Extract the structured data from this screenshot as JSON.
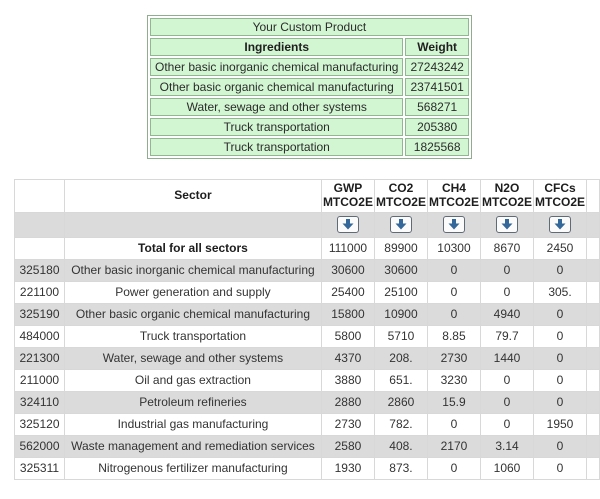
{
  "custom_product_table": {
    "title": "Your Custom Product",
    "columns": {
      "ingredients": "Ingredients",
      "weight": "Weight"
    },
    "rows": [
      {
        "ingredient": "Other basic inorganic chemical manufacturing",
        "weight": "27243242"
      },
      {
        "ingredient": "Other basic organic chemical manufacturing",
        "weight": "23741501"
      },
      {
        "ingredient": "Water, sewage and other systems",
        "weight": "568271"
      },
      {
        "ingredient": "Truck transportation",
        "weight": "205380"
      },
      {
        "ingredient": "Truck transportation",
        "weight": "1825568"
      }
    ],
    "colors": {
      "cell_green": "#D2F5D2",
      "border_green": "#92B592"
    }
  },
  "results_table": {
    "header": {
      "sector_label": "Sector",
      "gas_columns": [
        {
          "gas": "GWP",
          "unit": "MTCO2E",
          "highlighted": true
        },
        {
          "gas": "CO2",
          "unit": "MTCO2E",
          "highlighted": false
        },
        {
          "gas": "CH4",
          "unit": "MTCO2E",
          "highlighted": false
        },
        {
          "gas": "N2O",
          "unit": "MTCO2E",
          "highlighted": false
        },
        {
          "gas": "CFCs",
          "unit": "MTCO2E",
          "highlighted": false
        }
      ],
      "sort_icon": "down-arrow-icon"
    },
    "total_row": {
      "label": "Total for all sectors",
      "values": [
        "111000",
        "89900",
        "10300",
        "8670",
        "2450"
      ]
    },
    "rows": [
      {
        "code": "325180",
        "sector": "Other basic inorganic chemical manufacturing",
        "values": [
          "30600",
          "30600",
          "0",
          "0",
          "0"
        ]
      },
      {
        "code": "221100",
        "sector": "Power generation and supply",
        "values": [
          "25400",
          "25100",
          "0",
          "0",
          "305."
        ]
      },
      {
        "code": "325190",
        "sector": "Other basic organic chemical manufacturing",
        "values": [
          "15800",
          "10900",
          "0",
          "4940",
          "0"
        ]
      },
      {
        "code": "484000",
        "sector": "Truck transportation",
        "values": [
          "5800",
          "5710",
          "8.85",
          "79.7",
          "0"
        ]
      },
      {
        "code": "221300",
        "sector": "Water, sewage and other systems",
        "values": [
          "4370",
          "208.",
          "2730",
          "1440",
          "0"
        ]
      },
      {
        "code": "211000",
        "sector": "Oil and gas extraction",
        "values": [
          "3880",
          "651.",
          "3230",
          "0",
          "0"
        ]
      },
      {
        "code": "324110",
        "sector": "Petroleum refineries",
        "values": [
          "2880",
          "2860",
          "15.9",
          "0",
          "0"
        ]
      },
      {
        "code": "325120",
        "sector": "Industrial gas manufacturing",
        "values": [
          "2730",
          "782.",
          "0",
          "0",
          "1950"
        ]
      },
      {
        "code": "562000",
        "sector": "Waste management and remediation services",
        "values": [
          "2580",
          "408.",
          "2170",
          "3.14",
          "0"
        ]
      },
      {
        "code": "325311",
        "sector": "Nitrogenous fertilizer manufacturing",
        "values": [
          "1930",
          "873.",
          "0",
          "1060",
          "0"
        ]
      }
    ],
    "colors": {
      "highlight_green": "#2EBE60",
      "row_gray": "#DBDBDB",
      "arrow_blue": "#34679A",
      "border_gray": "#d8d8d8"
    }
  }
}
